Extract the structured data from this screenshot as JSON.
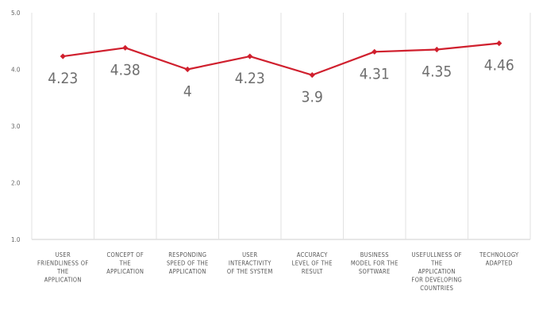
{
  "chart_data": {
    "type": "line",
    "categories": [
      [
        "USER",
        "FRIENDLINESS OF",
        "THE",
        "APPLICATION"
      ],
      [
        "CONCEPT OF",
        "THE",
        "APPLICATION"
      ],
      [
        "RESPONDING",
        "SPEED OF THE",
        "APPLICATION"
      ],
      [
        "USER",
        "INTERACTIVITY",
        "OF THE SYSTEM"
      ],
      [
        "ACCURACY",
        "LEVEL OF THE",
        "RESULT"
      ],
      [
        "BUSINESS",
        "MODEL FOR THE",
        "SOFTWARE"
      ],
      [
        "USEFULLNESS OF",
        "THE",
        "APPLICATION",
        "FOR DEVELOPING",
        "COUNTRIES"
      ],
      [
        "TECHNOLOGY",
        "ADAPTED"
      ]
    ],
    "values": [
      4.23,
      4.38,
      4,
      4.23,
      3.9,
      4.31,
      4.35,
      4.46
    ],
    "data_labels": [
      "4.23",
      "4.38",
      "4",
      "4.23",
      "3.9",
      "4.31",
      "4.35",
      "4.46"
    ],
    "yticks": [
      "1.0",
      "2.0",
      "3.0",
      "4.0",
      "5.0"
    ],
    "ylim": [
      1,
      5
    ],
    "grid": "vertical",
    "line_color": "#d0202e",
    "marker": "diamond"
  }
}
